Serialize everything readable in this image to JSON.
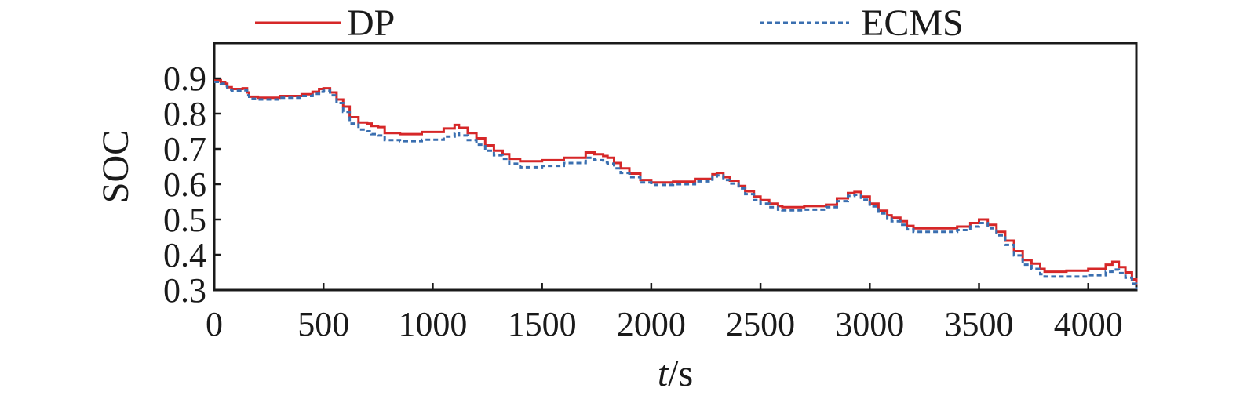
{
  "chart_data": {
    "type": "line",
    "title": "",
    "xlabel_italic": "t",
    "xlabel_unit": "/s",
    "ylabel": "SOC",
    "xlim": [
      0,
      4220
    ],
    "ylim": [
      0.3,
      1.0
    ],
    "x_ticks": [
      0,
      500,
      1000,
      1500,
      2000,
      2500,
      3000,
      3500,
      4000
    ],
    "x_tick_labels": [
      "0",
      "500",
      "1000",
      "1500",
      "2000",
      "2500",
      "3000",
      "3500",
      "4000"
    ],
    "y_ticks": [
      0.3,
      0.4,
      0.5,
      0.6,
      0.7,
      0.8,
      0.9
    ],
    "y_tick_labels": [
      "0.3",
      "0.4",
      "0.5",
      "0.6",
      "0.7",
      "0.8",
      "0.9"
    ],
    "grid": false,
    "legend_position": "top-outside",
    "series": [
      {
        "name": "DP",
        "color": "#d62728",
        "dash": "solid",
        "x": [
          0,
          30,
          50,
          60,
          80,
          130,
          150,
          160,
          200,
          300,
          400,
          450,
          480,
          500,
          530,
          560,
          590,
          620,
          660,
          700,
          720,
          750,
          780,
          850,
          950,
          1050,
          1100,
          1120,
          1160,
          1200,
          1240,
          1280,
          1320,
          1350,
          1400,
          1500,
          1600,
          1700,
          1740,
          1780,
          1800,
          1830,
          1860,
          1900,
          1950,
          2000,
          2100,
          2200,
          2280,
          2300,
          2330,
          2360,
          2400,
          2430,
          2470,
          2500,
          2540,
          2580,
          2600,
          2700,
          2800,
          2850,
          2900,
          2930,
          2960,
          3000,
          3040,
          3080,
          3100,
          3140,
          3170,
          3200,
          3300,
          3400,
          3460,
          3500,
          3540,
          3580,
          3620,
          3660,
          3700,
          3740,
          3780,
          3800,
          3900,
          4000,
          4080,
          4110,
          4140,
          4170,
          4200,
          4220
        ],
        "y": [
          0.895,
          0.89,
          0.885,
          0.875,
          0.87,
          0.872,
          0.86,
          0.848,
          0.845,
          0.85,
          0.855,
          0.862,
          0.87,
          0.872,
          0.86,
          0.84,
          0.82,
          0.79,
          0.775,
          0.772,
          0.765,
          0.762,
          0.745,
          0.742,
          0.748,
          0.758,
          0.768,
          0.76,
          0.745,
          0.73,
          0.71,
          0.695,
          0.685,
          0.672,
          0.665,
          0.668,
          0.675,
          0.69,
          0.685,
          0.68,
          0.675,
          0.66,
          0.645,
          0.63,
          0.612,
          0.605,
          0.607,
          0.615,
          0.628,
          0.632,
          0.62,
          0.61,
          0.595,
          0.58,
          0.565,
          0.555,
          0.545,
          0.538,
          0.535,
          0.538,
          0.542,
          0.56,
          0.575,
          0.578,
          0.565,
          0.545,
          0.525,
          0.512,
          0.505,
          0.495,
          0.482,
          0.475,
          0.475,
          0.48,
          0.49,
          0.5,
          0.485,
          0.465,
          0.44,
          0.41,
          0.385,
          0.375,
          0.36,
          0.352,
          0.355,
          0.36,
          0.372,
          0.38,
          0.365,
          0.35,
          0.33,
          0.315
        ]
      },
      {
        "name": "ECMS",
        "color": "#3a6fb0",
        "dash": "dashed",
        "x": [
          0,
          30,
          50,
          60,
          80,
          130,
          150,
          160,
          200,
          300,
          400,
          450,
          480,
          500,
          530,
          560,
          590,
          620,
          660,
          700,
          720,
          750,
          780,
          850,
          950,
          1050,
          1100,
          1120,
          1160,
          1200,
          1240,
          1280,
          1320,
          1350,
          1400,
          1500,
          1600,
          1700,
          1740,
          1780,
          1800,
          1830,
          1860,
          1900,
          1950,
          2000,
          2100,
          2200,
          2280,
          2300,
          2330,
          2360,
          2400,
          2430,
          2470,
          2500,
          2540,
          2580,
          2600,
          2700,
          2800,
          2850,
          2900,
          2930,
          2960,
          3000,
          3040,
          3080,
          3100,
          3140,
          3170,
          3200,
          3300,
          3400,
          3460,
          3500,
          3540,
          3580,
          3620,
          3660,
          3700,
          3740,
          3780,
          3800,
          3900,
          4000,
          4080,
          4110,
          4140,
          4170,
          4200,
          4220
        ],
        "y": [
          0.89,
          0.885,
          0.878,
          0.868,
          0.865,
          0.866,
          0.852,
          0.842,
          0.84,
          0.845,
          0.85,
          0.856,
          0.862,
          0.865,
          0.852,
          0.83,
          0.805,
          0.772,
          0.755,
          0.75,
          0.742,
          0.738,
          0.725,
          0.722,
          0.726,
          0.735,
          0.745,
          0.738,
          0.725,
          0.712,
          0.695,
          0.682,
          0.672,
          0.658,
          0.648,
          0.652,
          0.66,
          0.675,
          0.668,
          0.662,
          0.658,
          0.645,
          0.632,
          0.62,
          0.605,
          0.598,
          0.6,
          0.608,
          0.622,
          0.625,
          0.612,
          0.602,
          0.588,
          0.572,
          0.555,
          0.545,
          0.535,
          0.528,
          0.526,
          0.528,
          0.535,
          0.552,
          0.567,
          0.57,
          0.556,
          0.537,
          0.517,
          0.502,
          0.495,
          0.485,
          0.472,
          0.465,
          0.465,
          0.47,
          0.48,
          0.49,
          0.475,
          0.455,
          0.428,
          0.398,
          0.372,
          0.36,
          0.345,
          0.338,
          0.338,
          0.342,
          0.352,
          0.358,
          0.348,
          0.335,
          0.318,
          0.302
        ]
      }
    ]
  }
}
